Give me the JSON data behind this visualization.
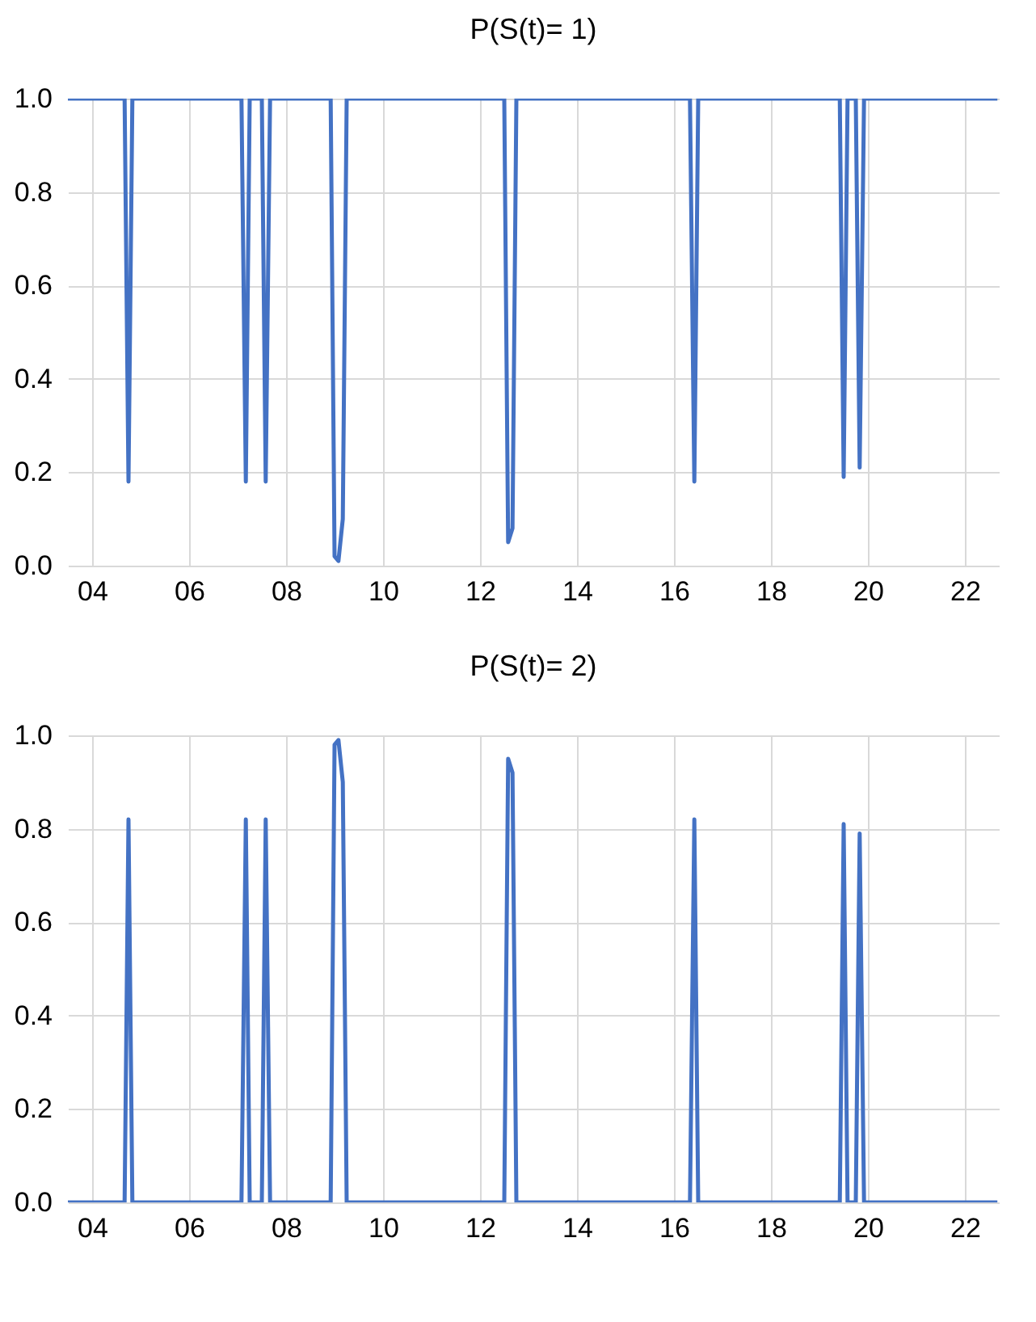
{
  "chart_data": [
    {
      "type": "line",
      "title": "P(S(t)= 1)",
      "x": [
        2003.5,
        2004.67,
        2004.75,
        2004.83,
        2007.08,
        2007.17,
        2007.25,
        2007.5,
        2007.58,
        2007.67,
        2008.92,
        2009.0,
        2009.08,
        2009.17,
        2009.25,
        2012.5,
        2012.58,
        2012.67,
        2012.75,
        2016.33,
        2016.42,
        2016.5,
        2019.42,
        2019.5,
        2019.58,
        2019.75,
        2019.83,
        2019.92,
        2022.67
      ],
      "series": [
        {
          "color": "#4472c4",
          "values": [
            1,
            1,
            0.18,
            1,
            1,
            0.18,
            1,
            1,
            0.18,
            1,
            1,
            0.02,
            0.01,
            0.1,
            1,
            1,
            0.05,
            0.08,
            1,
            1,
            0.18,
            1,
            1,
            0.19,
            1,
            1,
            0.21,
            1,
            1
          ]
        }
      ],
      "xlim": [
        2003.5,
        2022.7
      ],
      "xticks": [
        {
          "value": 2004,
          "label": "04"
        },
        {
          "value": 2006,
          "label": "06"
        },
        {
          "value": 2008,
          "label": "08"
        },
        {
          "value": 2010,
          "label": "10"
        },
        {
          "value": 2012,
          "label": "12"
        },
        {
          "value": 2014,
          "label": "14"
        },
        {
          "value": 2016,
          "label": "16"
        },
        {
          "value": 2018,
          "label": "18"
        },
        {
          "value": 2020,
          "label": "20"
        },
        {
          "value": 2022,
          "label": "22"
        }
      ],
      "ylim": [
        0,
        1
      ],
      "yticks": [
        {
          "value": 0,
          "label": "0.0"
        },
        {
          "value": 0.2,
          "label": "0.2"
        },
        {
          "value": 0.4,
          "label": "0.4"
        },
        {
          "value": 0.6,
          "label": "0.6"
        },
        {
          "value": 0.8,
          "label": "0.8"
        },
        {
          "value": 1,
          "label": "1.0"
        }
      ],
      "grid": true
    },
    {
      "type": "line",
      "title": "P(S(t)= 2)",
      "x": [
        2003.5,
        2004.67,
        2004.75,
        2004.83,
        2007.08,
        2007.17,
        2007.25,
        2007.5,
        2007.58,
        2007.67,
        2008.92,
        2009.0,
        2009.08,
        2009.17,
        2009.25,
        2012.5,
        2012.58,
        2012.67,
        2012.75,
        2016.33,
        2016.42,
        2016.5,
        2019.42,
        2019.5,
        2019.58,
        2019.75,
        2019.83,
        2019.92,
        2022.67
      ],
      "series": [
        {
          "color": "#4472c4",
          "values": [
            0,
            0,
            0.82,
            0,
            0,
            0.82,
            0,
            0,
            0.82,
            0,
            0,
            0.98,
            0.99,
            0.9,
            0,
            0,
            0.95,
            0.92,
            0,
            0,
            0.82,
            0,
            0,
            0.81,
            0,
            0,
            0.79,
            0,
            0
          ]
        }
      ],
      "xlim": [
        2003.5,
        2022.7
      ],
      "xticks": [
        {
          "value": 2004,
          "label": "04"
        },
        {
          "value": 2006,
          "label": "06"
        },
        {
          "value": 2008,
          "label": "08"
        },
        {
          "value": 2010,
          "label": "10"
        },
        {
          "value": 2012,
          "label": "12"
        },
        {
          "value": 2014,
          "label": "14"
        },
        {
          "value": 2016,
          "label": "16"
        },
        {
          "value": 2018,
          "label": "18"
        },
        {
          "value": 2020,
          "label": "20"
        },
        {
          "value": 2022,
          "label": "22"
        }
      ],
      "ylim": [
        0,
        1
      ],
      "yticks": [
        {
          "value": 0,
          "label": "0.0"
        },
        {
          "value": 0.2,
          "label": "0.2"
        },
        {
          "value": 0.4,
          "label": "0.4"
        },
        {
          "value": 0.6,
          "label": "0.6"
        },
        {
          "value": 0.8,
          "label": "0.8"
        },
        {
          "value": 1,
          "label": "1.0"
        }
      ],
      "grid": true
    }
  ]
}
